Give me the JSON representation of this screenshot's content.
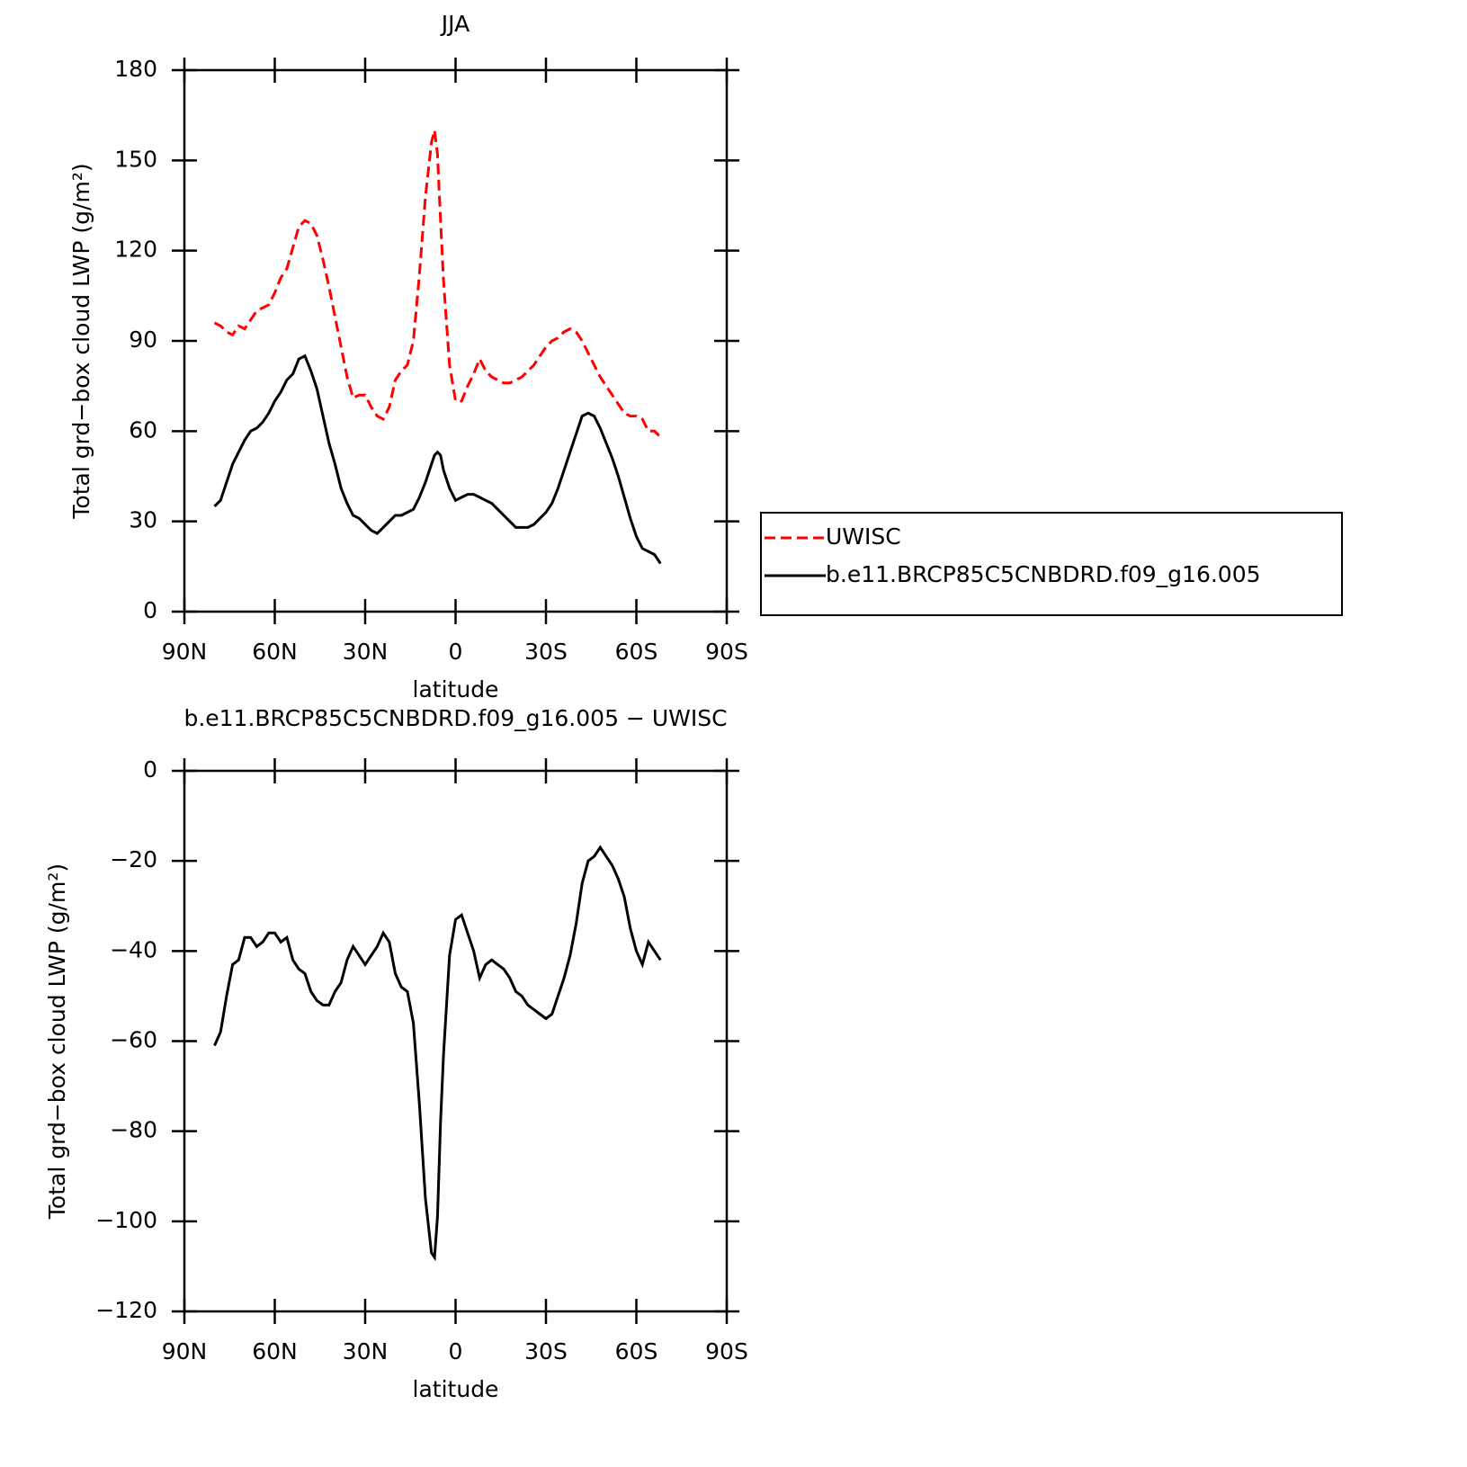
{
  "chart_data": [
    {
      "type": "line",
      "title": "JJA",
      "xlabel": "latitude",
      "ylabel": "Total grd−box cloud LWP (g/m²)",
      "x": [
        80,
        78,
        76,
        74,
        72,
        70,
        68,
        66,
        64,
        62,
        60,
        58,
        56,
        54,
        52,
        50,
        48,
        46,
        44,
        42,
        40,
        38,
        36,
        34,
        32,
        30,
        28,
        26,
        24,
        22,
        20,
        18,
        16,
        14,
        12,
        10,
        8,
        7,
        6,
        5,
        4,
        2,
        0,
        -2,
        -4,
        -6,
        -8,
        -10,
        -12,
        -14,
        -16,
        -18,
        -20,
        -22,
        -24,
        -26,
        -28,
        -30,
        -32,
        -34,
        -36,
        -38,
        -40,
        -42,
        -44,
        -46,
        -48,
        -50,
        -52,
        -54,
        -56,
        -58,
        -60,
        -62,
        -64,
        -66,
        -68
      ],
      "series": [
        {
          "name": "UWISC",
          "color": "#ff0000",
          "dash": true,
          "values": [
            96,
            95,
            93,
            92,
            95,
            94,
            97,
            100,
            101,
            102,
            106,
            111,
            114,
            121,
            128,
            130,
            129,
            125,
            117,
            108,
            98,
            88,
            78,
            71,
            72,
            72,
            68,
            65,
            64,
            68,
            77,
            80,
            82,
            90,
            112,
            138,
            156,
            160,
            152,
            130,
            110,
            82,
            70,
            70,
            75,
            79,
            84,
            80,
            78,
            77,
            76,
            76,
            77,
            78,
            80,
            82,
            85,
            88,
            90,
            91,
            93,
            94,
            93,
            90,
            86,
            82,
            78,
            75,
            72,
            69,
            66,
            65,
            65,
            64,
            60,
            60,
            58
          ]
        },
        {
          "name": "b.e11.BRCP85C5CNBDRD.f09_g16.005",
          "color": "#000000",
          "dash": false,
          "values": [
            35,
            37,
            43,
            49,
            53,
            57,
            60,
            61,
            63,
            66,
            70,
            73,
            77,
            79,
            84,
            85,
            80,
            74,
            65,
            56,
            49,
            41,
            36,
            32,
            31,
            29,
            27,
            26,
            28,
            30,
            32,
            32,
            33,
            34,
            38,
            43,
            49,
            52,
            53,
            52,
            47,
            41,
            37,
            38,
            39,
            39,
            38,
            37,
            36,
            34,
            32,
            30,
            28,
            28,
            28,
            29,
            31,
            33,
            36,
            41,
            47,
            53,
            59,
            65,
            66,
            65,
            61,
            56,
            51,
            45,
            38,
            31,
            25,
            21,
            20,
            19,
            16
          ]
        }
      ],
      "xlim": [
        90,
        -90
      ],
      "xticks": [
        {
          "value": 90,
          "label": "90N"
        },
        {
          "value": 60,
          "label": "60N"
        },
        {
          "value": 30,
          "label": "30N"
        },
        0,
        {
          "value": -30,
          "label": "30S"
        },
        {
          "value": -60,
          "label": "60S"
        },
        {
          "value": -90,
          "label": "90S"
        }
      ],
      "ylim": [
        0,
        180
      ],
      "yticks": [
        0,
        30,
        60,
        90,
        120,
        150,
        180
      ],
      "legend": "right"
    },
    {
      "type": "line",
      "title": "b.e11.BRCP85C5CNBDRD.f09_g16.005 − UWISC",
      "xlabel": "latitude",
      "ylabel": "Total grd−box cloud LWP (g/m²)",
      "x": [
        80,
        78,
        76,
        74,
        72,
        70,
        68,
        66,
        64,
        62,
        60,
        58,
        56,
        54,
        52,
        50,
        48,
        46,
        44,
        42,
        40,
        38,
        36,
        34,
        32,
        30,
        28,
        26,
        24,
        22,
        20,
        18,
        16,
        14,
        12,
        10,
        8,
        7,
        6,
        5,
        4,
        2,
        0,
        -2,
        -4,
        -6,
        -8,
        -10,
        -12,
        -14,
        -16,
        -18,
        -20,
        -22,
        -24,
        -26,
        -28,
        -30,
        -32,
        -34,
        -36,
        -38,
        -40,
        -42,
        -44,
        -46,
        -48,
        -50,
        -52,
        -54,
        -56,
        -58,
        -60,
        -62,
        -64,
        -66,
        -68
      ],
      "series": [
        {
          "color": "#000000",
          "dash": false,
          "values": [
            -61,
            -58,
            -50,
            -43,
            -42,
            -37,
            -37,
            -39,
            -38,
            -36,
            -36,
            -38,
            -37,
            -42,
            -44,
            -45,
            -49,
            -51,
            -52,
            -52,
            -49,
            -47,
            -42,
            -39,
            -41,
            -43,
            -41,
            -39,
            -36,
            -38,
            -45,
            -48,
            -49,
            -56,
            -74,
            -95,
            -107,
            -108,
            -99,
            -78,
            -63,
            -41,
            -33,
            -32,
            -36,
            -40,
            -46,
            -43,
            -42,
            -43,
            -44,
            -46,
            -49,
            -50,
            -52,
            -53,
            -54,
            -55,
            -54,
            -50,
            -46,
            -41,
            -34,
            -25,
            -20,
            -19,
            -17,
            -19,
            -21,
            -24,
            -28,
            -35,
            -40,
            -43,
            -38,
            -40,
            -42
          ]
        }
      ],
      "xlim": [
        90,
        -90
      ],
      "xticks": [
        {
          "value": 90,
          "label": "90N"
        },
        {
          "value": 60,
          "label": "60N"
        },
        {
          "value": 30,
          "label": "30N"
        },
        0,
        {
          "value": -30,
          "label": "30S"
        },
        {
          "value": -60,
          "label": "60S"
        },
        {
          "value": -90,
          "label": "90S"
        }
      ],
      "ylim": [
        -120,
        0
      ],
      "yticks": [
        {
          "value": -120,
          "label": "−120"
        },
        {
          "value": -100,
          "label": "−100"
        },
        {
          "value": -80,
          "label": "−80"
        },
        {
          "value": -60,
          "label": "−60"
        },
        {
          "value": -40,
          "label": "−40"
        },
        {
          "value": -20,
          "label": "−20"
        },
        0
      ]
    }
  ]
}
